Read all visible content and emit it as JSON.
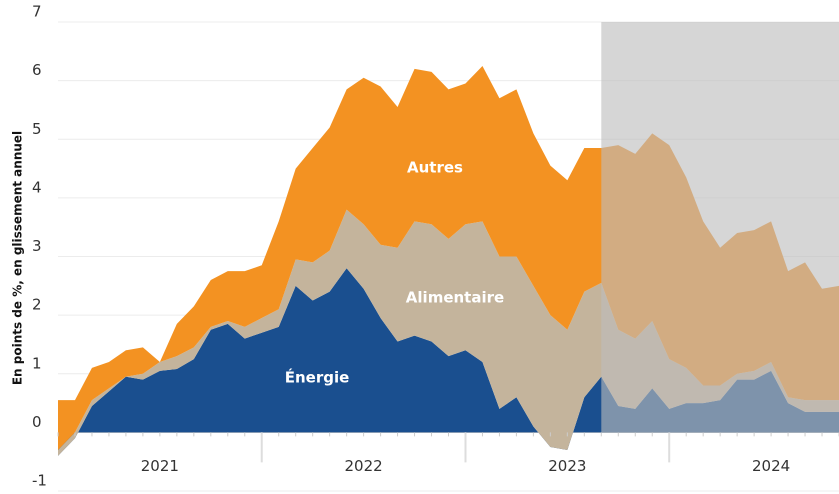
{
  "chart_data": {
    "type": "stacked_area",
    "y_axis_label": "En points de %, en glissement annuel",
    "categories": [
      null,
      null,
      null,
      null,
      null,
      null,
      null,
      null,
      null,
      null,
      null,
      null,
      null,
      null,
      null,
      null,
      null,
      null,
      null,
      null,
      null,
      null,
      null,
      null,
      null,
      null,
      null,
      null,
      null,
      null,
      null,
      null,
      null,
      null,
      null,
      null,
      null,
      null,
      null,
      null,
      null,
      null,
      null,
      null,
      null,
      null,
      null
    ],
    "year_labels": [
      "2021",
      "2022",
      "2023",
      "2024"
    ],
    "series": [
      {
        "name": "Énergie",
        "color": "#1a4f8f",
        "values": [
          -0.4,
          -0.1,
          0.45,
          0.7,
          0.95,
          0.9,
          1.05,
          1.08,
          1.25,
          1.75,
          1.85,
          1.6,
          1.7,
          1.8,
          2.5,
          2.25,
          2.4,
          2.8,
          2.45,
          1.95,
          1.55,
          1.65,
          1.55,
          1.3,
          1.4,
          1.2,
          0.4,
          0.6,
          0.1,
          -0.25,
          -0.3,
          0.6,
          0.95,
          0.45,
          0.4,
          0.75,
          0.4,
          0.5,
          0.5,
          0.55,
          0.9,
          0.9,
          1.05,
          0.5,
          0.35,
          0.35,
          0.35
        ]
      },
      {
        "name": "Alimentaire",
        "color": "#c4b49c",
        "values": [
          0.1,
          0.1,
          0.1,
          0.05,
          0.0,
          0.1,
          0.15,
          0.22,
          0.2,
          0.05,
          0.05,
          0.2,
          0.25,
          0.3,
          0.45,
          0.65,
          0.7,
          1.0,
          1.1,
          1.25,
          1.6,
          1.95,
          2.0,
          2.0,
          2.15,
          2.4,
          2.6,
          2.4,
          2.4,
          2.25,
          2.05,
          1.8,
          1.6,
          1.3,
          1.2,
          1.15,
          0.85,
          0.6,
          0.3,
          0.25,
          0.1,
          0.15,
          0.15,
          0.1,
          0.2,
          0.2,
          0.2
        ]
      },
      {
        "name": "Autres",
        "color": "#f39222",
        "values": [
          0.85,
          0.55,
          0.55,
          0.45,
          0.45,
          0.45,
          0.0,
          0.55,
          0.7,
          0.8,
          0.85,
          0.95,
          0.9,
          1.5,
          1.55,
          1.95,
          2.1,
          2.05,
          2.5,
          2.7,
          2.4,
          2.6,
          2.6,
          2.55,
          2.4,
          2.65,
          2.7,
          2.85,
          2.6,
          2.55,
          2.55,
          2.45,
          2.3,
          3.15,
          3.15,
          3.2,
          3.65,
          3.25,
          2.8,
          2.35,
          2.4,
          2.4,
          2.4,
          2.15,
          2.35,
          1.9,
          1.95
        ]
      }
    ],
    "ylim": [
      -1,
      7
    ],
    "yticks": [
      -1,
      0,
      1,
      2,
      3,
      4,
      5,
      6,
      7
    ],
    "grid": true,
    "shaded_from": 32,
    "shade_color": "#bdbdbd"
  }
}
